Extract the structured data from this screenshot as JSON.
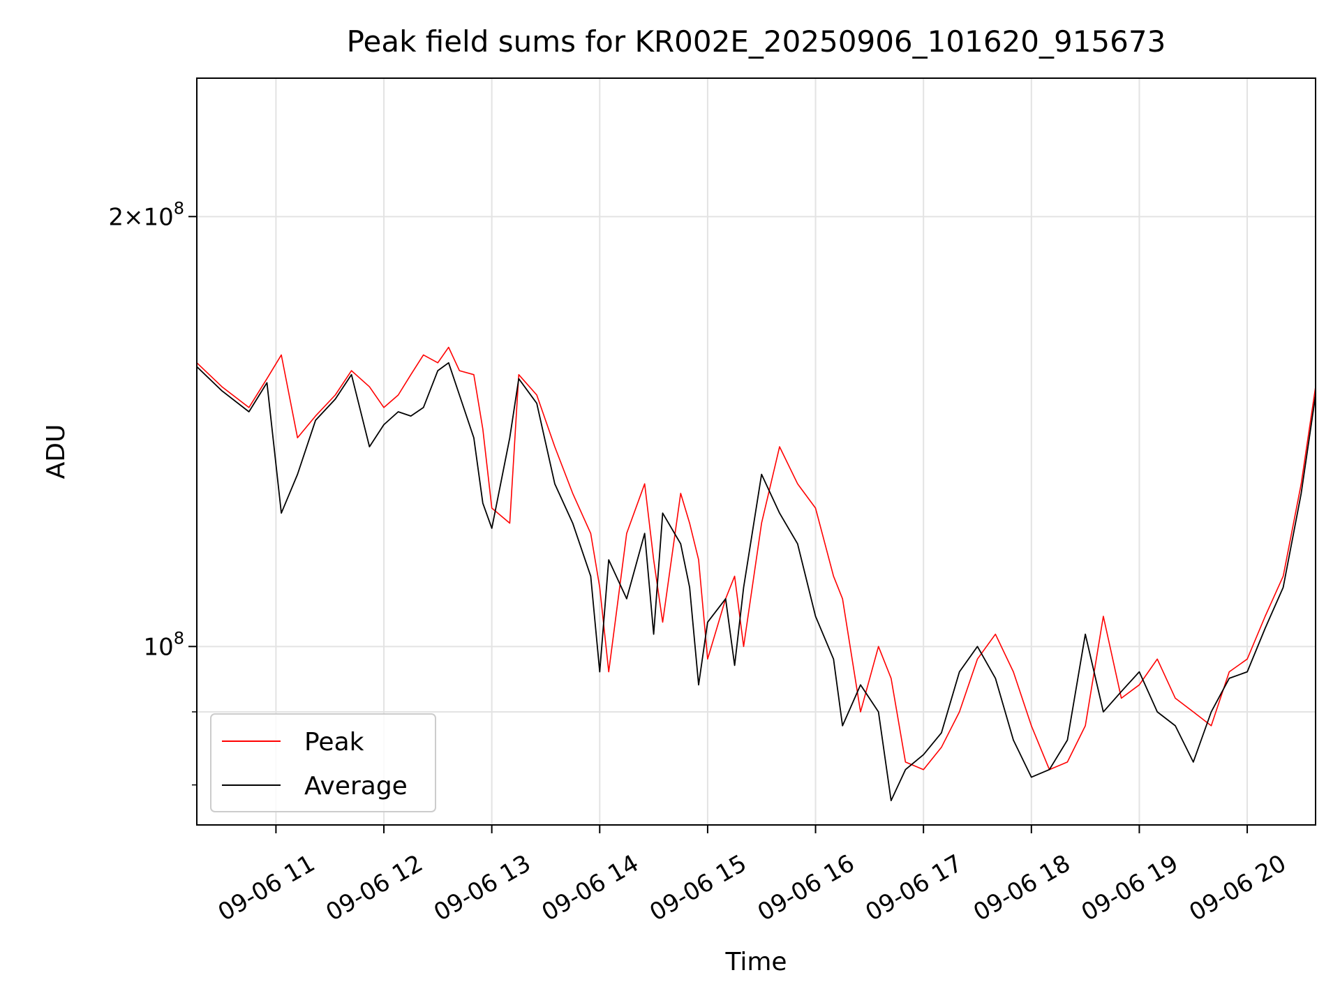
{
  "chart_data": {
    "type": "line",
    "title": "Peak field sums for KR002E_20250906_101620_915673",
    "xlabel": "Time",
    "ylabel": "ADU",
    "y_scale": "log",
    "ylim": [
      75000000,
      250000000
    ],
    "x_range": [
      "2025-09-06 10:16",
      "2025-09-06 20:38"
    ],
    "grid": true,
    "legend_position": "lower-left",
    "x_ticks": [
      {
        "time": "2025-09-06 11:00",
        "label": "09-06 11"
      },
      {
        "time": "2025-09-06 12:00",
        "label": "09-06 12"
      },
      {
        "time": "2025-09-06 13:00",
        "label": "09-06 13"
      },
      {
        "time": "2025-09-06 14:00",
        "label": "09-06 14"
      },
      {
        "time": "2025-09-06 15:00",
        "label": "09-06 15"
      },
      {
        "time": "2025-09-06 16:00",
        "label": "09-06 16"
      },
      {
        "time": "2025-09-06 17:00",
        "label": "09-06 17"
      },
      {
        "time": "2025-09-06 18:00",
        "label": "09-06 18"
      },
      {
        "time": "2025-09-06 19:00",
        "label": "09-06 19"
      },
      {
        "time": "2025-09-06 20:00",
        "label": "09-06 20"
      }
    ],
    "y_ticks": [
      {
        "value": 100000000,
        "base": "10",
        "exp": "8",
        "coef": ""
      },
      {
        "value": 200000000,
        "base": "10",
        "exp": "8",
        "coef": "2"
      }
    ],
    "series": [
      {
        "name": "Peak",
        "color": "#ff0000",
        "x": [
          "10:16",
          "10:30",
          "10:45",
          "10:55",
          "11:03",
          "11:12",
          "11:22",
          "11:33",
          "11:42",
          "11:52",
          "12:00",
          "12:08",
          "12:15",
          "12:22",
          "12:30",
          "12:36",
          "12:42",
          "12:50",
          "12:55",
          "13:00",
          "13:10",
          "13:15",
          "13:25",
          "13:35",
          "13:45",
          "13:55",
          "14:00",
          "14:05",
          "14:15",
          "14:25",
          "14:30",
          "14:35",
          "14:45",
          "14:50",
          "14:55",
          "15:00",
          "15:10",
          "15:15",
          "15:20",
          "15:30",
          "15:40",
          "15:50",
          "16:00",
          "16:10",
          "16:15",
          "16:25",
          "16:35",
          "16:42",
          "16:50",
          "17:00",
          "17:10",
          "17:20",
          "17:30",
          "17:40",
          "17:50",
          "18:00",
          "18:10",
          "18:20",
          "18:30",
          "18:40",
          "18:50",
          "19:00",
          "19:10",
          "19:20",
          "19:30",
          "19:40",
          "19:50",
          "20:00",
          "20:10",
          "20:20",
          "20:30",
          "20:38"
        ],
        "y": [
          158000000,
          152000000,
          147000000,
          154000000,
          160000000,
          140000000,
          145000000,
          150000000,
          156000000,
          152000000,
          147000000,
          150000000,
          155000000,
          160000000,
          158000000,
          162000000,
          156000000,
          155000000,
          142000000,
          125000000,
          122000000,
          155000000,
          150000000,
          138000000,
          128000000,
          120000000,
          110000000,
          96000000,
          120000000,
          130000000,
          115000000,
          104000000,
          128000000,
          122000000,
          115000000,
          98000000,
          108000000,
          112000000,
          100000000,
          122000000,
          138000000,
          130000000,
          125000000,
          112000000,
          108000000,
          90000000,
          100000000,
          95000000,
          83000000,
          82000000,
          85000000,
          90000000,
          98000000,
          102000000,
          96000000,
          88000000,
          82000000,
          83000000,
          88000000,
          105000000,
          92000000,
          94000000,
          98000000,
          92000000,
          90000000,
          88000000,
          96000000,
          98000000,
          105000000,
          112000000,
          130000000,
          152000000
        ]
      },
      {
        "name": "Average",
        "color": "#000000",
        "x": [
          "10:16",
          "10:30",
          "10:45",
          "10:55",
          "11:03",
          "11:12",
          "11:22",
          "11:33",
          "11:42",
          "11:52",
          "12:00",
          "12:08",
          "12:15",
          "12:22",
          "12:30",
          "12:36",
          "12:42",
          "12:50",
          "12:55",
          "13:00",
          "13:10",
          "13:15",
          "13:25",
          "13:35",
          "13:45",
          "13:55",
          "14:00",
          "14:05",
          "14:15",
          "14:25",
          "14:30",
          "14:35",
          "14:45",
          "14:50",
          "14:55",
          "15:00",
          "15:10",
          "15:15",
          "15:20",
          "15:30",
          "15:40",
          "15:50",
          "16:00",
          "16:10",
          "16:15",
          "16:25",
          "16:35",
          "16:42",
          "16:50",
          "17:00",
          "17:10",
          "17:20",
          "17:30",
          "17:40",
          "17:50",
          "18:00",
          "18:10",
          "18:20",
          "18:30",
          "18:40",
          "18:50",
          "19:00",
          "19:10",
          "19:20",
          "19:30",
          "19:40",
          "19:50",
          "20:00",
          "20:10",
          "20:20",
          "20:30",
          "20:38"
        ],
        "y": [
          157000000,
          151000000,
          146000000,
          153000000,
          124000000,
          132000000,
          144000000,
          149000000,
          155000000,
          138000000,
          143000000,
          146000000,
          145000000,
          147000000,
          156000000,
          158000000,
          150000000,
          140000000,
          126000000,
          121000000,
          140000000,
          154000000,
          148000000,
          130000000,
          122000000,
          112000000,
          96000000,
          115000000,
          108000000,
          120000000,
          102000000,
          124000000,
          118000000,
          110000000,
          94000000,
          104000000,
          108000000,
          97000000,
          110000000,
          132000000,
          124000000,
          118000000,
          105000000,
          98000000,
          88000000,
          94000000,
          90000000,
          78000000,
          82000000,
          84000000,
          87000000,
          96000000,
          100000000,
          95000000,
          86000000,
          81000000,
          82000000,
          86000000,
          102000000,
          90000000,
          93000000,
          96000000,
          90000000,
          88000000,
          83000000,
          90000000,
          95000000,
          96000000,
          103000000,
          110000000,
          128000000,
          150000000
        ]
      }
    ]
  }
}
